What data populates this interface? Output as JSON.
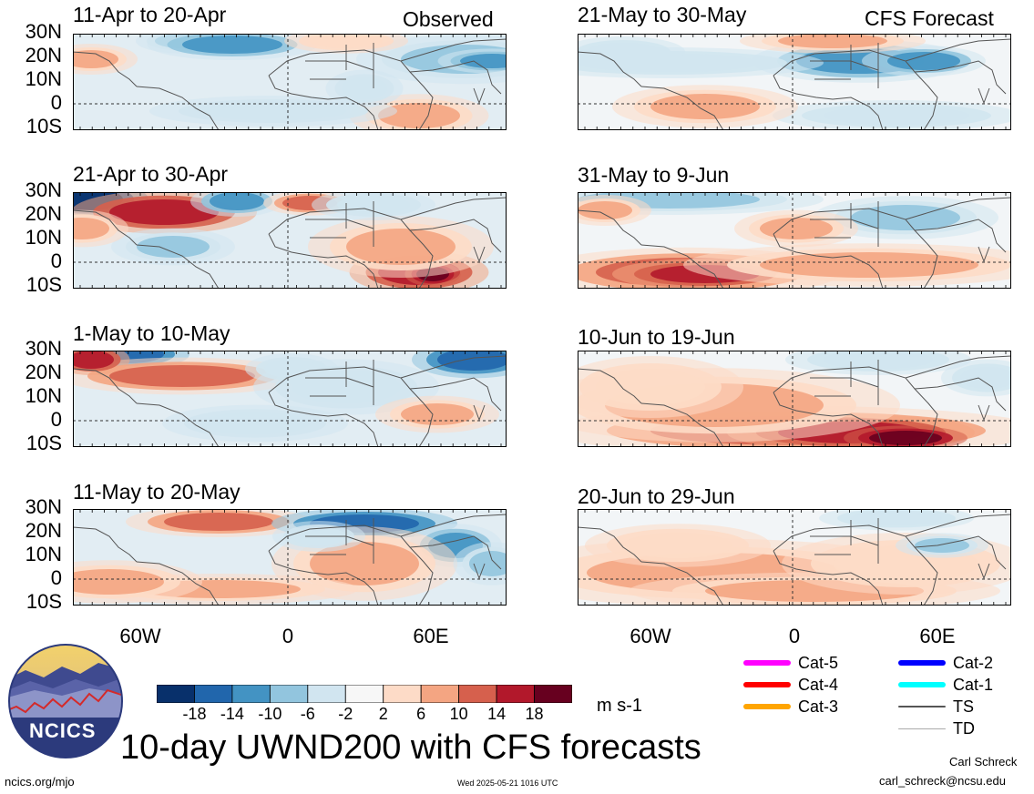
{
  "header": {
    "left": "Observed",
    "right": "CFS Forecast"
  },
  "panels_left": [
    {
      "title": "11-Apr to 20-Apr"
    },
    {
      "title": "21-Apr to 30-Apr"
    },
    {
      "title": "1-May to 10-May"
    },
    {
      "title": "11-May to 20-May"
    }
  ],
  "panels_right": [
    {
      "title": "21-May to 30-May"
    },
    {
      "title": "31-May to 9-Jun"
    },
    {
      "title": "10-Jun to 19-Jun"
    },
    {
      "title": "20-Jun to 29-Jun"
    }
  ],
  "lat_labels": [
    "30N",
    "20N",
    "10N",
    "0",
    "10S"
  ],
  "lon_labels": [
    "60W",
    "0",
    "60E"
  ],
  "colorbar": {
    "ticks": [
      "-18",
      "-14",
      "-10",
      "-6",
      "-2",
      "2",
      "6",
      "10",
      "14",
      "18"
    ],
    "units": "m s-1",
    "colors": [
      "#08306b",
      "#2166ac",
      "#4393c3",
      "#92c5de",
      "#d1e5f0",
      "#f7f7f7",
      "#fddbc7",
      "#f4a582",
      "#d6604d",
      "#b2182b",
      "#67001f"
    ]
  },
  "storm_legend": [
    {
      "label": "Cat-5",
      "color": "#ff00ff"
    },
    {
      "label": "Cat-4",
      "color": "#ff0000"
    },
    {
      "label": "Cat-3",
      "color": "#ffa500"
    },
    {
      "label": "Cat-2",
      "color": "#0000ff"
    },
    {
      "label": "Cat-1",
      "color": "#00ffff"
    },
    {
      "label": "TS",
      "color": "#555555"
    },
    {
      "label": "TD",
      "color": "#aaaaaa"
    }
  ],
  "logo": {
    "text": "NCICS"
  },
  "main_title": "10-day UWND200 with CFS forecasts",
  "footer": {
    "url": "ncics.org/mjo",
    "timestamp": "Wed 2025-05-21 1016 UTC",
    "author": "Carl Schreck",
    "email": "carl_schreck@ncsu.edu"
  }
}
